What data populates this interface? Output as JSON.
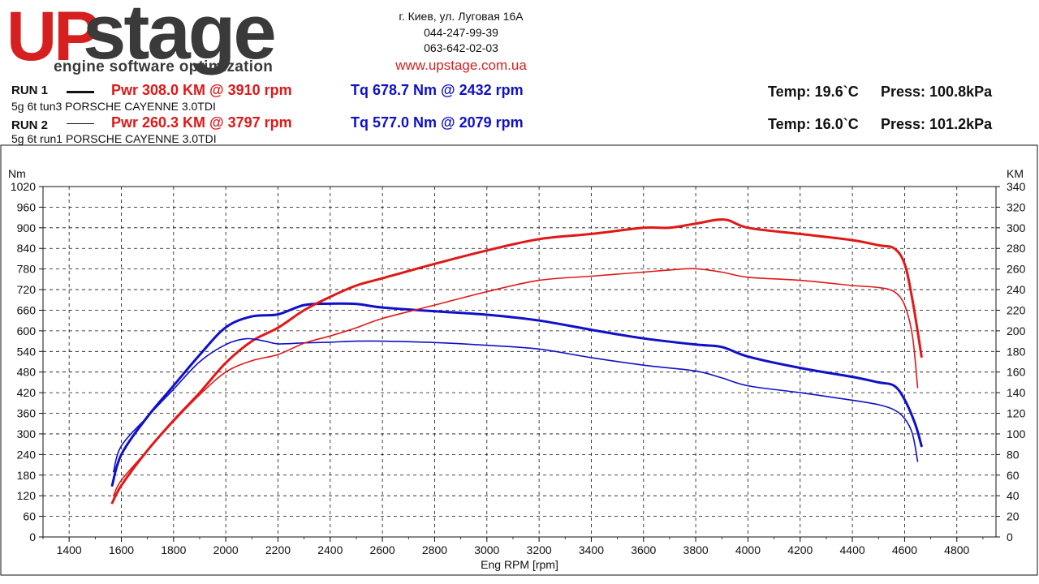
{
  "header": {
    "logo_up": "UP",
    "logo_stage": "stage",
    "logo_tagline": "engine software optimization",
    "address": "г. Киев, ул. Луговая 16А",
    "phone1": "044-247-99-39",
    "phone2": "063-642-02-03",
    "website": "www.upstage.com.ua"
  },
  "runs": [
    {
      "label": "RUN 1",
      "description": "5g 6t tun3 PORSCHE CAYENNE 3.0TDI",
      "power": "Pwr  308.0 KM @ 3910 rpm",
      "torque": "Tq 678.7 Nm @ 2432 rpm",
      "temp": "Temp: 19.6`C",
      "press": "Press: 100.8kPa"
    },
    {
      "label": "RUN 2",
      "description": "5g 6t run1 PORSCHE CAYENNE 3.0TDI",
      "power": "Pwr  260.3 KM @ 3797 rpm",
      "torque": "Tq 577.0 Nm @ 2079 rpm",
      "temp": "Temp: 16.0`C",
      "press": "Press: 101.2kPa"
    }
  ],
  "colors": {
    "power": "#e01818",
    "torque": "#1010c8",
    "grid": "#111111"
  },
  "chart_data": {
    "type": "line",
    "title": "",
    "xlabel": "Eng RPM [rpm]",
    "ylabel_left": "Nm",
    "ylabel_right": "KM",
    "xlim": [
      1300,
      4950
    ],
    "ylim_left": [
      0,
      1020
    ],
    "ylim_right": [
      0,
      340
    ],
    "x_ticks": [
      1400,
      1600,
      1800,
      2000,
      2200,
      2400,
      2600,
      2800,
      3000,
      3200,
      3400,
      3600,
      3800,
      4000,
      4200,
      4400,
      4600,
      4800
    ],
    "y_ticks_left": [
      0,
      60,
      120,
      180,
      240,
      300,
      360,
      420,
      480,
      540,
      600,
      660,
      720,
      780,
      840,
      900,
      960,
      1020
    ],
    "y_ticks_right": [
      0,
      20,
      40,
      60,
      80,
      100,
      120,
      140,
      160,
      180,
      200,
      220,
      240,
      260,
      280,
      300,
      320,
      340
    ],
    "grid": true,
    "series": [
      {
        "name": "RUN 1 Torque",
        "axis": "left",
        "color": "#1010c8",
        "width": 3,
        "x": [
          1565,
          1600,
          1700,
          1800,
          1900,
          2000,
          2100,
          2200,
          2300,
          2400,
          2500,
          2600,
          2800,
          3000,
          3200,
          3400,
          3600,
          3800,
          3900,
          4000,
          4200,
          4400,
          4500,
          4560,
          4600,
          4640,
          4665
        ],
        "y": [
          150,
          240,
          350,
          440,
          530,
          610,
          642,
          648,
          675,
          679,
          678,
          668,
          657,
          647,
          630,
          603,
          578,
          560,
          553,
          525,
          492,
          466,
          450,
          440,
          400,
          330,
          265
        ]
      },
      {
        "name": "RUN 1 Power",
        "axis": "right",
        "color": "#e01818",
        "width": 3,
        "x": [
          1565,
          1600,
          1700,
          1800,
          1900,
          2000,
          2100,
          2200,
          2300,
          2400,
          2500,
          2600,
          2800,
          3000,
          3200,
          3400,
          3600,
          3700,
          3800,
          3910,
          4000,
          4200,
          4400,
          4500,
          4560,
          4600,
          4630,
          4665
        ],
        "y": [
          33,
          50,
          84,
          113,
          140,
          169,
          190,
          203,
          220,
          233,
          244,
          251,
          265,
          278,
          289,
          294,
          300,
          300,
          304,
          308,
          300,
          294,
          288,
          283,
          280,
          265,
          230,
          175
        ]
      },
      {
        "name": "RUN 2 Torque",
        "axis": "left",
        "color": "#1010c8",
        "width": 1.6,
        "x": [
          1570,
          1600,
          1700,
          1800,
          1900,
          2000,
          2079,
          2150,
          2200,
          2300,
          2400,
          2500,
          2600,
          2800,
          3000,
          3200,
          3400,
          3600,
          3800,
          3900,
          4000,
          4200,
          4400,
          4500,
          4560,
          4600,
          4630,
          4650
        ],
        "y": [
          190,
          265,
          350,
          430,
          510,
          560,
          577,
          570,
          562,
          565,
          567,
          570,
          570,
          566,
          558,
          547,
          522,
          500,
          483,
          463,
          440,
          420,
          398,
          385,
          370,
          345,
          300,
          220
        ]
      },
      {
        "name": "RUN 2 Power",
        "axis": "right",
        "color": "#e01818",
        "width": 1.6,
        "x": [
          1570,
          1600,
          1700,
          1800,
          1900,
          2000,
          2100,
          2200,
          2300,
          2400,
          2500,
          2600,
          2800,
          3000,
          3200,
          3400,
          3600,
          3700,
          3797,
          3900,
          4000,
          4200,
          4400,
          4500,
          4560,
          4600,
          4630,
          4650
        ],
        "y": [
          40,
          55,
          84,
          112,
          138,
          160,
          171,
          177,
          188,
          195,
          203,
          212,
          225,
          238,
          249,
          253,
          257,
          259,
          260.3,
          257,
          252,
          249,
          244,
          242,
          238,
          225,
          195,
          145
        ]
      }
    ]
  }
}
